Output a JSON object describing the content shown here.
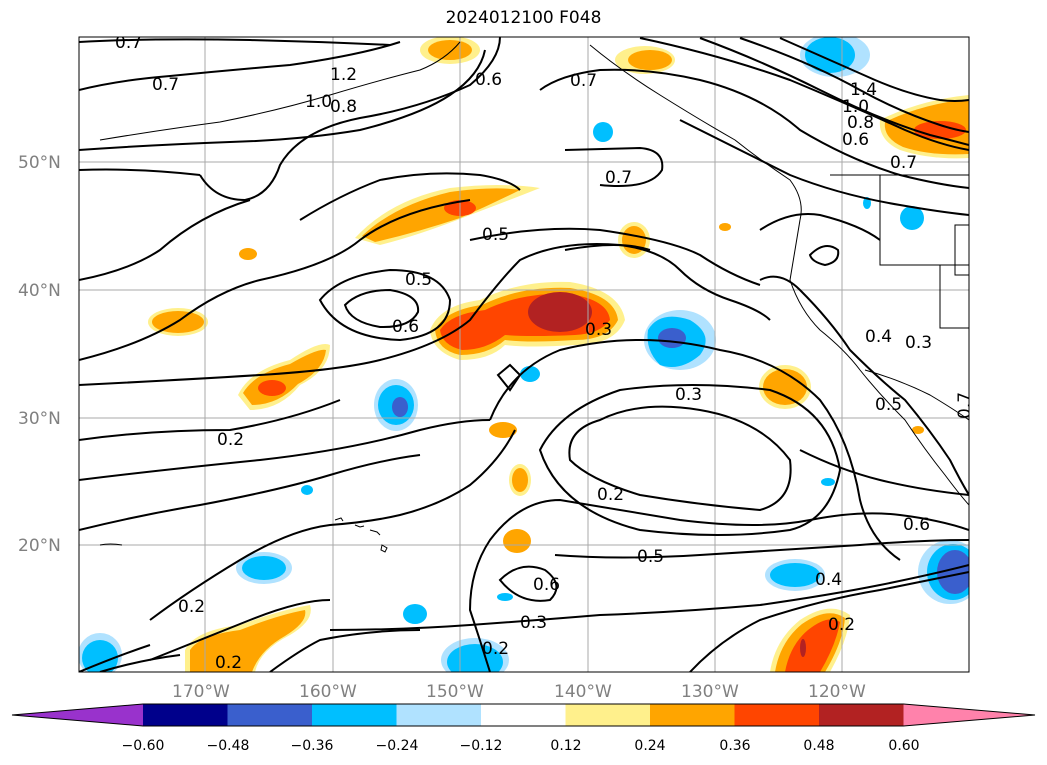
{
  "title": "2024012100 F048",
  "lat_ticks": [
    "50°N",
    "40°N",
    "30°N",
    "20°N"
  ],
  "lon_ticks": [
    "170°W",
    "160°W",
    "150°W",
    "140°W",
    "130°W",
    "120°W"
  ],
  "colorbar": {
    "tick_labels": [
      "−0.60",
      "−0.48",
      "−0.36",
      "−0.24",
      "−0.12",
      "0.12",
      "0.24",
      "0.36",
      "0.48",
      "0.60"
    ],
    "colors": [
      "#9932cc",
      "#00008b",
      "#3a5fcd",
      "#00bfff",
      "#b0e2ff",
      "#ffffff",
      "#fff08c",
      "#ffa500",
      "#ff4500",
      "#b22222",
      "#ff82ab"
    ]
  },
  "contour_labels": [
    {
      "text": "0.7"
    },
    {
      "text": "0.7"
    },
    {
      "text": "1.2"
    },
    {
      "text": "1.0"
    },
    {
      "text": "0.8"
    },
    {
      "text": "0.6"
    },
    {
      "text": "0.7"
    },
    {
      "text": "0.7"
    },
    {
      "text": "1.4"
    },
    {
      "text": "1.0"
    },
    {
      "text": "0.8"
    },
    {
      "text": "0.6"
    },
    {
      "text": "0.7"
    },
    {
      "text": "0.5"
    },
    {
      "text": "0.5"
    },
    {
      "text": "0.6"
    },
    {
      "text": "0.3"
    },
    {
      "text": "0.3"
    },
    {
      "text": "0.4"
    },
    {
      "text": "0.3"
    },
    {
      "text": "0.5"
    },
    {
      "text": "0.2"
    },
    {
      "text": "0.2"
    },
    {
      "text": "0.6"
    },
    {
      "text": "0.5"
    },
    {
      "text": "0.6"
    },
    {
      "text": "0.4"
    },
    {
      "text": "0.2"
    },
    {
      "text": "0.3"
    },
    {
      "text": "0.2"
    },
    {
      "text": "0.2"
    },
    {
      "text": "0.2"
    },
    {
      "text": "0.7"
    }
  ]
}
